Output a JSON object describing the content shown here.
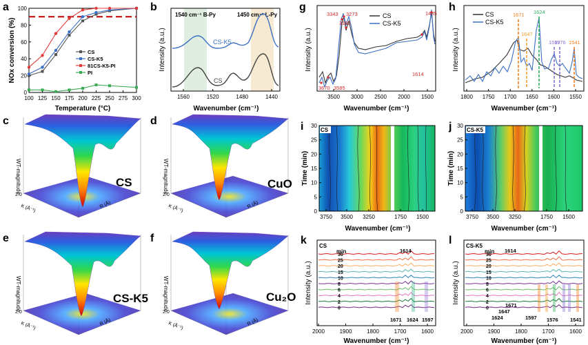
{
  "chart_data": [
    {
      "panel": "a",
      "type": "line",
      "ylabel": "NOx conversion (%)",
      "xlabel": "Temperature (°C)",
      "xlim": [
        100,
        300
      ],
      "ylim": [
        0,
        100
      ],
      "x_ticks": [
        "100",
        "125",
        "150",
        "175",
        "200",
        "225",
        "250",
        "275",
        "300"
      ],
      "y_ticks": [
        "0",
        "20",
        "40",
        "60",
        "80",
        "100"
      ],
      "reference_line": 90,
      "series": [
        {
          "name": "CS",
          "color": "#555555",
          "x": [
            100,
            125,
            150,
            175,
            200,
            225,
            250,
            300
          ],
          "y": [
            20,
            25,
            45,
            68,
            85,
            93,
            97,
            100
          ]
        },
        {
          "name": "CS-K5",
          "color": "#3b6fc4",
          "x": [
            100,
            125,
            150,
            175,
            200,
            225,
            250,
            300
          ],
          "y": [
            22,
            30,
            50,
            72,
            90,
            95,
            98,
            100
          ]
        },
        {
          "name": "81CS-K5-PI",
          "color": "#e23c3c",
          "x": [
            100,
            125,
            150,
            175,
            200,
            225,
            250,
            300
          ],
          "y": [
            30,
            44,
            70,
            88,
            98,
            100,
            100,
            100
          ]
        },
        {
          "name": "PI",
          "color": "#3aaa55",
          "x": [
            100,
            125,
            150,
            175,
            200,
            225,
            250,
            300
          ],
          "y": [
            3,
            3,
            1,
            3,
            5,
            9,
            8,
            6
          ]
        }
      ]
    },
    {
      "panel": "b",
      "type": "line",
      "ylabel": "Intensity (a.u.)",
      "xlabel": "Wavenumber (cm⁻¹)",
      "x_ticks": [
        "1560",
        "1520",
        "1480",
        "1440"
      ],
      "bands": [
        "1540 cm⁻¹  B-Py",
        "1450 cm⁻¹  L-Py"
      ],
      "series": [
        {
          "name": "CS-K5",
          "color": "#3b6fc4"
        },
        {
          "name": "CS",
          "color": "#444444"
        }
      ]
    },
    {
      "panel": "g",
      "type": "line",
      "ylabel": "Intensity (a.u.)",
      "xlabel": "Wavenumber (cm⁻¹)",
      "x_ticks": [
        "3500",
        "3000",
        "2500",
        "2000",
        "1500"
      ],
      "peaks": [
        "3343",
        "3273",
        "3182",
        "3670",
        "3585",
        "1614",
        "1435"
      ],
      "series": [
        {
          "name": "CS",
          "color": "#333333"
        },
        {
          "name": "CS-K5",
          "color": "#3b6fc4"
        }
      ]
    },
    {
      "panel": "h",
      "type": "line",
      "ylabel": "Intensity (a.u.)",
      "xlabel": "Wavenumber (cm⁻¹)",
      "x_ticks": [
        "1800",
        "1750",
        "1700",
        "1650",
        "1600",
        "1550"
      ],
      "peaks": [
        "1671",
        "1647",
        "1624",
        "1597",
        "1576",
        "1541"
      ],
      "series": [
        {
          "name": "CS",
          "color": "#333333"
        },
        {
          "name": "CS-K5",
          "color": "#3b6fc4"
        }
      ]
    },
    {
      "panel": "i",
      "type": "heatmap",
      "label": "CS",
      "ylabel": "Time (min)",
      "xlabel": "Wavenumber (cm⁻¹)",
      "x_ticks": [
        "3750",
        "3500",
        "3250",
        "1750",
        "1500"
      ],
      "y_ticks": [
        "0",
        "5",
        "10",
        "15",
        "20",
        "25",
        "30"
      ]
    },
    {
      "panel": "j",
      "type": "heatmap",
      "label": "CS-K5",
      "ylabel": "Time (min)",
      "xlabel": "Wavenumber (cm⁻¹)",
      "x_ticks": [
        "3750",
        "3500",
        "3250",
        "1750",
        "1500"
      ],
      "y_ticks": [
        "0",
        "5",
        "10",
        "15",
        "20",
        "25",
        "30"
      ]
    },
    {
      "panel": "k",
      "type": "line",
      "label": "CS",
      "ylabel": "Intensity (a.u.)",
      "xlabel": "Wavenumber (cm⁻¹)",
      "x_ticks": [
        "2000",
        "1900",
        "1800",
        "1700",
        "1600"
      ],
      "time_header": "min",
      "times": [
        "30",
        "25",
        "20",
        "15",
        "10",
        "8",
        "6",
        "4",
        "2",
        "0"
      ],
      "peaks": [
        "1614",
        "1671",
        "1624",
        "1597"
      ]
    },
    {
      "panel": "l",
      "type": "line",
      "label": "CS-K5",
      "ylabel": "Intensity (a.u.)",
      "xlabel": "Wavenumber (cm⁻¹)",
      "x_ticks": [
        "2000",
        "1900",
        "1800",
        "1700",
        "1600"
      ],
      "time_header": "min",
      "times": [
        "30",
        "25",
        "20",
        "15",
        "10",
        "8",
        "6",
        "4",
        "2",
        "0"
      ],
      "peaks": [
        "1614",
        "1671",
        "1647",
        "1624",
        "1597",
        "1576",
        "1541"
      ]
    }
  ],
  "surfaces": [
    {
      "panel": "c",
      "name": "CS"
    },
    {
      "panel": "d",
      "name": "CuO"
    },
    {
      "panel": "e",
      "name": "CS-K5"
    },
    {
      "panel": "f",
      "name": "Cu₂O"
    }
  ],
  "surface_axes": {
    "z": "WT-magnitude",
    "x": "K (Å⁻¹)",
    "y": "R (Å)",
    "z_top": "2.0"
  },
  "panel_letters": [
    "a",
    "b",
    "c",
    "d",
    "e",
    "f",
    "g",
    "h",
    "i",
    "j",
    "k",
    "l"
  ],
  "palette": {
    "series_colors": [
      "#d7191c",
      "#f46d43",
      "#fdae61",
      "#5ab4ac",
      "#2b83ba",
      "#7b3294",
      "#66bd63",
      "#e377c2",
      "#1b7837",
      "#762a83",
      "#333333"
    ]
  }
}
